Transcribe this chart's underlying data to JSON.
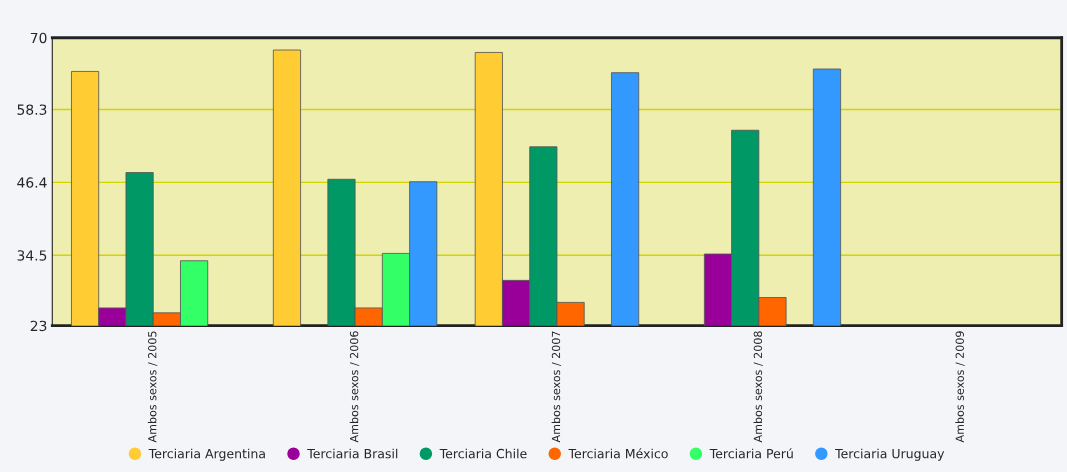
{
  "chart_data": {
    "type": "bar",
    "categories": [
      "Ambos sexos / 2005",
      "Ambos sexos / 2006",
      "Ambos sexos / 2007",
      "Ambos sexos / 2008",
      "Ambos sexos / 2009"
    ],
    "series": [
      {
        "name": "Terciaria Argentina",
        "color": "#ffcc33",
        "values": [
          64.5,
          68.0,
          67.6,
          null,
          null
        ]
      },
      {
        "name": "Terciaria Brasil",
        "color": "#990099",
        "values": [
          25.9,
          null,
          30.4,
          34.7,
          null
        ]
      },
      {
        "name": "Terciaria Chile",
        "color": "#009966",
        "values": [
          48.0,
          46.9,
          52.2,
          54.9,
          null
        ]
      },
      {
        "name": "Terciaria México",
        "color": "#ff6600",
        "values": [
          25.1,
          25.9,
          26.8,
          27.6,
          null
        ]
      },
      {
        "name": "Terciaria Perú",
        "color": "#33ff66",
        "values": [
          33.6,
          34.8,
          null,
          null,
          null
        ]
      },
      {
        "name": "Terciaria Uruguay",
        "color": "#3399ff",
        "values": [
          null,
          46.5,
          64.3,
          64.9,
          null
        ]
      }
    ],
    "ylim": [
      23,
      70
    ],
    "yticks": [
      23,
      34.5,
      46.4,
      58.3,
      70
    ],
    "grid": "y",
    "legend": "bottom"
  }
}
